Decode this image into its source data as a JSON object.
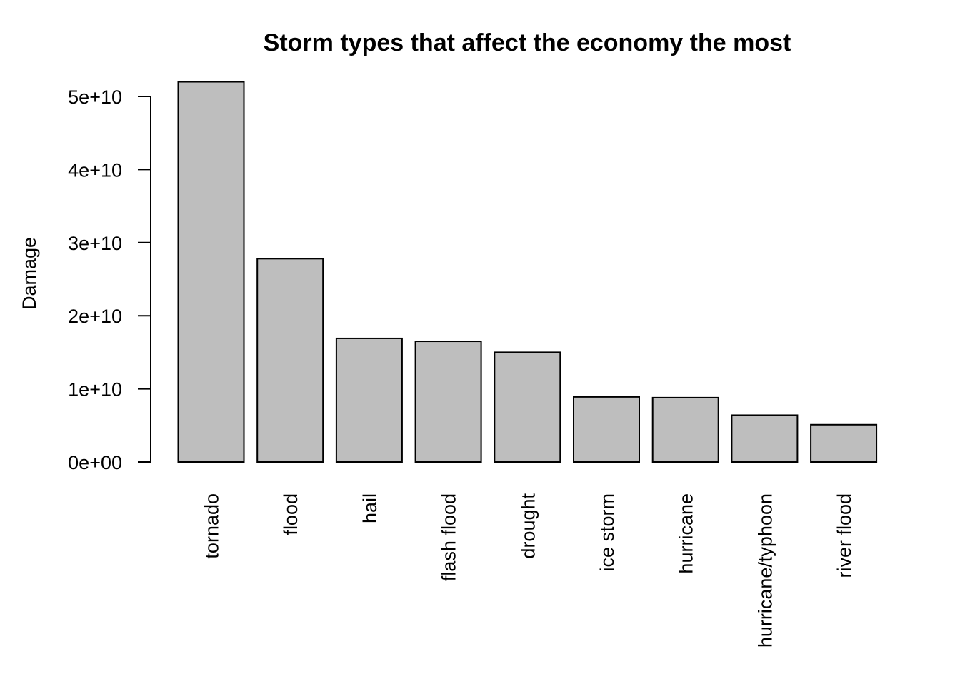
{
  "chart_data": {
    "type": "bar",
    "title": "Storm types that affect the economy the most",
    "xlabel": "",
    "ylabel": "Damage",
    "categories": [
      "tornado",
      "flood",
      "hail",
      "flash flood",
      "drought",
      "ice storm",
      "hurricane",
      "hurricane/typhoon",
      "river flood"
    ],
    "values": [
      52000000000,
      27800000000,
      16900000000,
      16500000000,
      15000000000,
      8900000000,
      8800000000,
      6400000000,
      5100000000
    ],
    "ylim": [
      0,
      52000000000
    ],
    "yticks": [
      0,
      10000000000,
      20000000000,
      30000000000,
      40000000000,
      50000000000
    ],
    "ytick_labels": [
      "0e+00",
      "1e+10",
      "2e+10",
      "3e+10",
      "4e+10",
      "5e+10"
    ],
    "bar_color": "#bebebe",
    "grid": false,
    "legend": "none"
  }
}
